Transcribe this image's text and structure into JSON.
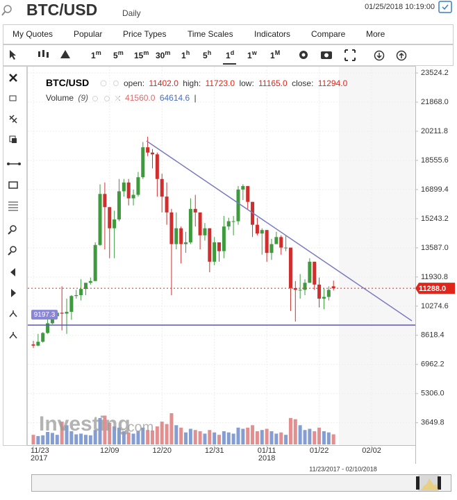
{
  "header": {
    "symbol": "BTC/USD",
    "interval": "Daily",
    "datetime": "01/25/2018 10:19:00"
  },
  "menu": [
    "My Quotes",
    "Popular",
    "Price Types",
    "Time Scales",
    "Indicators",
    "Compare",
    "More"
  ],
  "timeframes": [
    {
      "num": "1",
      "unit": "m"
    },
    {
      "num": "5",
      "unit": "m"
    },
    {
      "num": "15",
      "unit": "m"
    },
    {
      "num": "30",
      "unit": "m"
    },
    {
      "num": "1",
      "unit": "h"
    },
    {
      "num": "5",
      "unit": "h"
    },
    {
      "num": "1",
      "unit": "d"
    },
    {
      "num": "1",
      "unit": "w"
    },
    {
      "num": "1",
      "unit": "M"
    }
  ],
  "chart_data": {
    "type": "candlestick",
    "legend": {
      "symbol": "BTC/USD",
      "open_label": "open:",
      "open": "11402.0",
      "high_label": "high:",
      "high": "11723.0",
      "low_label": "low:",
      "low": "11165.0",
      "close_label": "close:",
      "close": "11294.0",
      "volume_label": "Volume",
      "volume_period": "(9)",
      "volume_sep": ":",
      "volume_value": "41560.0",
      "volume_ma": "64614.6",
      "volume_end": "|"
    },
    "categories": [
      "11/23",
      null,
      null,
      null,
      null,
      null,
      null,
      null,
      null,
      null,
      null,
      null,
      null,
      null,
      null,
      null,
      "12/09",
      null,
      null,
      null,
      null,
      null,
      null,
      null,
      null,
      null,
      null,
      "12/20",
      null,
      null,
      null,
      null,
      null,
      null,
      null,
      null,
      null,
      null,
      "12/31",
      null,
      null,
      null,
      null,
      null,
      null,
      null,
      null,
      null,
      null,
      "01/11",
      null,
      null,
      null,
      null,
      null,
      null,
      null,
      null,
      null,
      null,
      "01/22",
      null,
      null,
      null,
      null,
      null,
      null,
      null,
      null,
      null,
      null,
      "02/02",
      null,
      null,
      null,
      null,
      null,
      null,
      null,
      null
    ],
    "category_years": [
      "2017",
      null,
      null,
      null,
      null,
      null,
      null,
      null,
      null,
      null,
      null,
      null,
      null,
      null,
      null,
      null,
      null,
      null,
      null,
      null,
      null,
      null,
      null,
      null,
      null,
      null,
      null,
      null,
      null,
      null,
      null,
      null,
      null,
      null,
      null,
      null,
      null,
      null,
      null,
      null,
      null,
      null,
      null,
      null,
      null,
      null,
      null,
      null,
      null,
      "2018",
      null,
      null,
      null,
      null,
      null,
      null,
      null,
      null,
      null,
      null,
      null,
      null,
      null,
      null,
      null,
      null,
      null,
      null,
      null,
      null,
      null,
      null,
      null,
      null,
      null,
      null,
      null,
      null,
      null,
      null
    ],
    "open": [
      8100,
      8030,
      8250,
      8750,
      9300,
      9700,
      9900,
      9850,
      9950,
      10850,
      10900,
      11250,
      11600,
      11700,
      13750,
      16650,
      15900,
      14700,
      15200,
      16800,
      17300,
      16400,
      16600,
      17600,
      19300,
      19000,
      18900,
      17500,
      16500,
      15600,
      13800,
      14700,
      13800,
      13900,
      15800,
      15600,
      14300,
      14700,
      12800,
      13900,
      13400,
      14800,
      15100,
      15100,
      16900,
      17100,
      16200,
      14900,
      14400,
      14600,
      13300,
      13800,
      14200,
      13600,
      13600,
      11300,
      11200,
      11200,
      11600,
      12800,
      11500,
      10700,
      10800,
      11402,
      null,
      null,
      null,
      null,
      null,
      null,
      null,
      null,
      null,
      null,
      null,
      null,
      null,
      null,
      null,
      null
    ],
    "high": [
      8300,
      8700,
      8800,
      9600,
      9800,
      9950,
      11400,
      10700,
      10900,
      11200,
      11800,
      11600,
      11900,
      13900,
      17200,
      17300,
      15900,
      15700,
      17500,
      17500,
      17500,
      16900,
      17900,
      19600,
      19900,
      19200,
      19000,
      17800,
      17300,
      15800,
      15600,
      14800,
      14500,
      16400,
      16600,
      15600,
      15000,
      14700,
      14200,
      13900,
      15400,
      15300,
      15400,
      17100,
      17200,
      17100,
      16200,
      15300,
      14700,
      14600,
      14100,
      14500,
      14300,
      14300,
      13600,
      11700,
      12100,
      11800,
      13000,
      12800,
      11900,
      11300,
      11400,
      11723,
      null,
      null,
      null,
      null,
      null,
      null,
      null,
      null,
      null,
      null,
      null,
      null,
      null,
      null,
      null,
      null
    ],
    "low": [
      7900,
      8000,
      8200,
      8700,
      9250,
      9600,
      8900,
      8700,
      9500,
      10700,
      10600,
      10900,
      11500,
      11700,
      13700,
      13500,
      13000,
      13000,
      15100,
      16500,
      16000,
      16000,
      16500,
      17500,
      18800,
      18100,
      16500,
      15600,
      14900,
      10900,
      13500,
      12700,
      13300,
      13800,
      14800,
      13500,
      14000,
      12200,
      12600,
      12800,
      13000,
      14600,
      14300,
      14900,
      16300,
      15800,
      14200,
      14300,
      13200,
      12800,
      12900,
      13800,
      13200,
      13400,
      10000,
      9400,
      10700,
      10900,
      11600,
      11200,
      10200,
      10100,
      10600,
      11165,
      null,
      null,
      null,
      null,
      null,
      null,
      null,
      null,
      null,
      null,
      null,
      null,
      null,
      null,
      null,
      null
    ],
    "close": [
      8030,
      8250,
      8750,
      9300,
      9700,
      9900,
      9850,
      9950,
      10850,
      10900,
      11250,
      11600,
      11700,
      13750,
      16650,
      15900,
      14700,
      15200,
      16800,
      17300,
      16400,
      16600,
      17600,
      19300,
      19000,
      18900,
      17500,
      16500,
      15600,
      13800,
      14700,
      13800,
      13900,
      15800,
      15600,
      14300,
      14700,
      12800,
      13900,
      13400,
      14800,
      15100,
      15100,
      16900,
      17100,
      16200,
      14900,
      14400,
      14600,
      13300,
      13800,
      14200,
      13600,
      13600,
      11300,
      11200,
      11200,
      11600,
      12800,
      11500,
      10700,
      10800,
      11200,
      11294,
      null,
      null,
      null,
      null,
      null,
      null,
      null,
      null,
      null,
      null,
      null,
      null,
      null,
      null,
      null,
      null
    ],
    "volume": [
      40000,
      35000,
      38000,
      52000,
      48000,
      40000,
      95000,
      80000,
      55000,
      42000,
      45000,
      40000,
      38000,
      60000,
      110000,
      120000,
      90000,
      75000,
      70000,
      55000,
      50000,
      45000,
      55000,
      70000,
      60000,
      58000,
      75000,
      95000,
      85000,
      130000,
      80000,
      70000,
      50000,
      65000,
      60000,
      55000,
      45000,
      60000,
      50000,
      40000,
      55000,
      50000,
      45000,
      70000,
      65000,
      70000,
      80000,
      55000,
      60000,
      65000,
      55000,
      45000,
      50000,
      40000,
      110000,
      105000,
      80000,
      60000,
      65000,
      55000,
      70000,
      55000,
      50000,
      42000,
      null,
      null,
      null,
      null,
      null,
      null,
      null,
      null,
      null,
      null,
      null,
      null,
      null,
      null,
      null,
      null
    ],
    "up_color": "#3d9a3d",
    "down_color": "#cf2e2e",
    "volume_up_color": "#5b7dc4",
    "volume_down_color": "#d96a6a",
    "ylim": [
      2416,
      23882
    ],
    "yticks": [
      23524.2,
      {
        "value": 21868,
        "label": "21868.0"
      },
      20211.8,
      18555.6,
      16899.4,
      15243.2,
      {
        "value": 13587,
        "label": "13587.0"
      },
      11930.8,
      10274.6,
      8618.4,
      6962.2,
      {
        "value": 5306,
        "label": "5306.0"
      },
      3649.8
    ],
    "hline": 9197.3,
    "hline_color": "#5b55b5",
    "last_price": {
      "value": 11288,
      "label": "11288.0"
    },
    "last_price_color": "#e0251b",
    "grid": true,
    "watermark": {
      "brand": "Investing",
      "domain": ".com"
    },
    "navigator_range": "11/23/2017 - 02/10/2018"
  }
}
